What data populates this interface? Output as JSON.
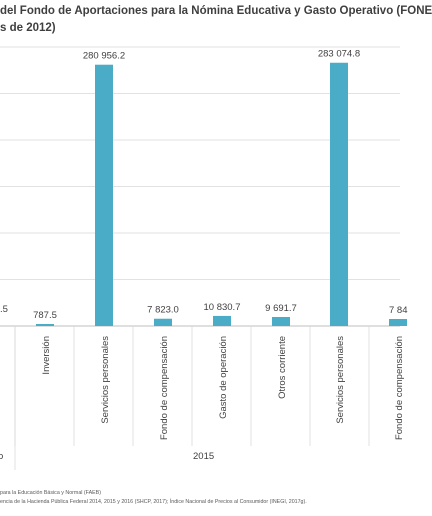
{
  "chart_data": {
    "type": "bar",
    "title_line1": "del Fondo de Aportaciones para la Nómina Educativa y Gasto Operativo (FONE",
    "title_line2": "s de 2012)",
    "color": "#4aacc6",
    "bars": [
      {
        "category": "",
        "value": null,
        "value_label": ".5"
      },
      {
        "category": "Inversión",
        "value": 787.5,
        "value_label": "787.5"
      },
      {
        "category": "Servicios personales",
        "value": 280956.2,
        "value_label": "280 956.2"
      },
      {
        "category": "Fondo de compensación",
        "value": 7823.0,
        "value_label": "7 823.0"
      },
      {
        "category": "Gasto de operación",
        "value": 10830.7,
        "value_label": "10 830.7"
      },
      {
        "category": "Otros corriente",
        "value": 9691.7,
        "value_label": "9 691.7"
      },
      {
        "category": "Servicios personales",
        "value": 283074.8,
        "value_label": "283 074.8"
      },
      {
        "category": "Fondo de compensación",
        "value": null,
        "value_label": "7 84"
      }
    ],
    "groups": [
      {
        "label": "o"
      },
      {
        "label": "2015"
      }
    ],
    "ylim": [
      0,
      300000
    ],
    "grid": true
  },
  "footnotes": {
    "line1": "para la Educación Básica y Normal (FAEB)",
    "line2": "encia de la Hacienda Pública Federal  2014, 2015 y 2016 (SHCP, 2017); Índice Nacional de Precios  al Consumidor (INEGI,  2017g)."
  }
}
